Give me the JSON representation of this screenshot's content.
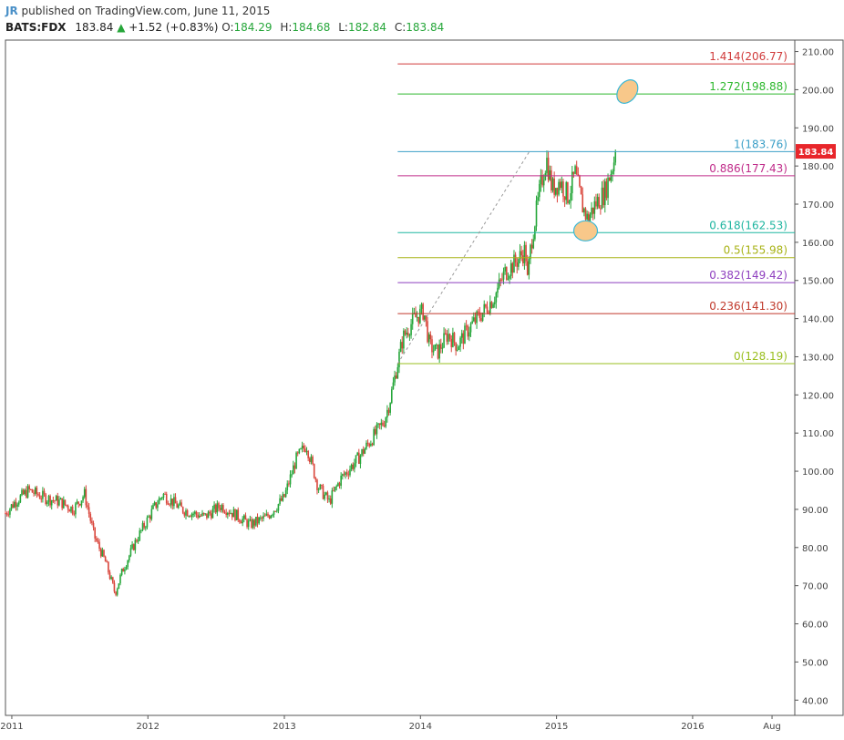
{
  "header": {
    "author": "JR",
    "published": " published on TradingView.com, June 11, 2015",
    "symbol": "BATS:FDX",
    "last": "183.84",
    "change_arrow": "▲",
    "change": "+1.52 (+0.83%)",
    "open_label": "O:",
    "open": "184.29",
    "high_label": "H:",
    "high": "184.68",
    "low_label": "L:",
    "low": "182.84",
    "close_label": "C:",
    "close": "183.84"
  },
  "colors": {
    "up_candle": "#26a63a",
    "down_candle": "#d9453b",
    "price_tag": "#e8262b",
    "frame": "#555555"
  },
  "chart_data": {
    "type": "candlestick",
    "symbol": "BATS:FDX",
    "ylim": [
      36,
      213
    ],
    "y_ticks": [
      40,
      50,
      60,
      70,
      80,
      90,
      100,
      110,
      120,
      130,
      140,
      150,
      160,
      170,
      180,
      190,
      200,
      210
    ],
    "y_tick_labels": [
      "40.00",
      "50.00",
      "60.00",
      "70.00",
      "80.00",
      "90.00",
      "100.00",
      "110.00",
      "120.00",
      "130.00",
      "140.00",
      "150.00",
      "160.00",
      "170.00",
      "180.00",
      "190.00",
      "200.00",
      "210.00"
    ],
    "x_range": [
      "2010-12-15",
      "2016-10-01"
    ],
    "x_ticks": [
      {
        "date": "2011-01-01",
        "label": "2011"
      },
      {
        "date": "2012-01-01",
        "label": "2012"
      },
      {
        "date": "2013-01-01",
        "label": "2013"
      },
      {
        "date": "2014-01-01",
        "label": "2014"
      },
      {
        "date": "2015-01-01",
        "label": "2015"
      },
      {
        "date": "2016-01-01",
        "label": "2016"
      },
      {
        "date": "2016-08-01",
        "label": "Aug"
      }
    ],
    "last_price": 183.84,
    "last_price_label": "183.84",
    "close_path": [
      [
        "2010-12-15",
        89
      ],
      [
        "2011-01-10",
        92
      ],
      [
        "2011-02-15",
        95
      ],
      [
        "2011-04-01",
        93
      ],
      [
        "2011-05-10",
        92
      ],
      [
        "2011-06-15",
        90
      ],
      [
        "2011-07-15",
        94
      ],
      [
        "2011-08-10",
        83
      ],
      [
        "2011-09-10",
        76
      ],
      [
        "2011-10-05",
        68
      ],
      [
        "2011-10-25",
        74
      ],
      [
        "2011-12-01",
        82
      ],
      [
        "2012-01-15",
        90
      ],
      [
        "2012-02-10",
        94
      ],
      [
        "2012-04-01",
        90
      ],
      [
        "2012-06-01",
        88
      ],
      [
        "2012-07-15",
        91
      ],
      [
        "2012-09-01",
        88
      ],
      [
        "2012-10-01",
        86
      ],
      [
        "2012-11-15",
        88
      ],
      [
        "2012-12-31",
        93
      ],
      [
        "2013-02-01",
        103
      ],
      [
        "2013-03-01",
        107
      ],
      [
        "2013-04-01",
        96
      ],
      [
        "2013-05-01",
        92
      ],
      [
        "2013-06-01",
        98
      ],
      [
        "2013-07-15",
        103
      ],
      [
        "2013-08-20",
        108
      ],
      [
        "2013-09-25",
        113
      ],
      [
        "2013-10-10",
        118
      ],
      [
        "2013-10-25",
        125
      ],
      [
        "2013-11-15",
        135
      ],
      [
        "2013-12-15",
        140
      ],
      [
        "2014-01-10",
        142
      ],
      [
        "2014-01-25",
        133
      ],
      [
        "2014-02-15",
        131
      ],
      [
        "2014-03-15",
        136
      ],
      [
        "2014-04-10",
        133
      ],
      [
        "2014-05-15",
        138
      ],
      [
        "2014-06-20",
        142
      ],
      [
        "2014-07-20",
        146
      ],
      [
        "2014-08-15",
        152
      ],
      [
        "2014-09-15",
        155
      ],
      [
        "2014-10-10",
        158
      ],
      [
        "2014-10-15",
        150
      ],
      [
        "2014-10-25",
        160
      ],
      [
        "2014-11-20",
        175
      ],
      [
        "2014-12-05",
        182
      ],
      [
        "2014-12-20",
        174
      ],
      [
        "2015-01-10",
        176
      ],
      [
        "2015-02-01",
        172
      ],
      [
        "2015-02-20",
        178
      ],
      [
        "2015-03-10",
        170
      ],
      [
        "2015-03-25",
        166
      ],
      [
        "2015-04-15",
        170
      ],
      [
        "2015-05-10",
        173
      ],
      [
        "2015-05-25",
        178
      ],
      [
        "2015-06-11",
        183.84
      ]
    ],
    "fib_retracement": {
      "start": "2013-11-01",
      "end": "2016-09-15",
      "trend_line": {
        "from": [
          "2013-11-01",
          128.19
        ],
        "to": [
          "2014-10-20",
          183.76
        ]
      },
      "levels": [
        {
          "ratio": "1.414",
          "value": 206.77,
          "label": "1.414(206.77)",
          "color": "#d03b3b"
        },
        {
          "ratio": "1.272",
          "value": 198.88,
          "label": "1.272(198.88)",
          "color": "#2eb82e"
        },
        {
          "ratio": "1",
          "value": 183.76,
          "label": "1(183.76)",
          "color": "#3b9fc7"
        },
        {
          "ratio": "0.886",
          "value": 177.43,
          "label": "0.886(177.43)",
          "color": "#c02c8a"
        },
        {
          "ratio": "0.618",
          "value": 162.53,
          "label": "0.618(162.53)",
          "color": "#1eb5a0"
        },
        {
          "ratio": "0.5",
          "value": 155.98,
          "label": "0.5(155.98)",
          "color": "#a8b317"
        },
        {
          "ratio": "0.382",
          "value": 149.42,
          "label": "0.382(149.42)",
          "color": "#8e3fbf"
        },
        {
          "ratio": "0.236",
          "value": 141.3,
          "label": "0.236(141.30)",
          "color": "#c0392b"
        },
        {
          "ratio": "0",
          "value": 128.19,
          "label": "0(128.19)",
          "color": "#9abf1f"
        }
      ]
    },
    "highlights": [
      {
        "date": "2015-07-10",
        "value": 199.5,
        "fill": "#f8c88a",
        "stroke": "#3ab8d8"
      },
      {
        "date": "2015-03-20",
        "value": 163.0,
        "fill": "#f8c88a",
        "stroke": "#3ab8d8"
      }
    ]
  }
}
